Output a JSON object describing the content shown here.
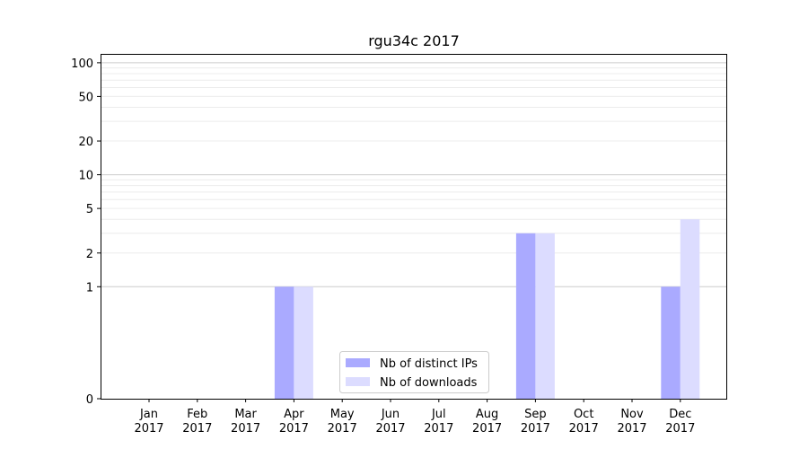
{
  "chart_data": {
    "type": "bar",
    "title": "rgu34c 2017",
    "xlabel": "",
    "ylabel": "",
    "y_scale": "symlog",
    "ylim": [
      0,
      120
    ],
    "y_ticks": [
      0,
      1,
      2,
      5,
      10,
      20,
      50,
      100
    ],
    "grid": "horizontal",
    "legend_position": "bottom-center",
    "categories": [
      [
        "Jan",
        "2017"
      ],
      [
        "Feb",
        "2017"
      ],
      [
        "Mar",
        "2017"
      ],
      [
        "Apr",
        "2017"
      ],
      [
        "May",
        "2017"
      ],
      [
        "Jun",
        "2017"
      ],
      [
        "Jul",
        "2017"
      ],
      [
        "Aug",
        "2017"
      ],
      [
        "Sep",
        "2017"
      ],
      [
        "Oct",
        "2017"
      ],
      [
        "Nov",
        "2017"
      ],
      [
        "Dec",
        "2017"
      ]
    ],
    "series": [
      {
        "name": "Nb of distinct IPs",
        "color": "#aaaaff",
        "values": [
          0,
          0,
          0,
          1,
          0,
          0,
          0,
          0,
          3,
          0,
          0,
          1
        ]
      },
      {
        "name": "Nb of downloads",
        "color": "#dcdcff",
        "values": [
          0,
          0,
          0,
          1,
          0,
          0,
          0,
          0,
          3,
          0,
          0,
          4
        ]
      }
    ]
  }
}
